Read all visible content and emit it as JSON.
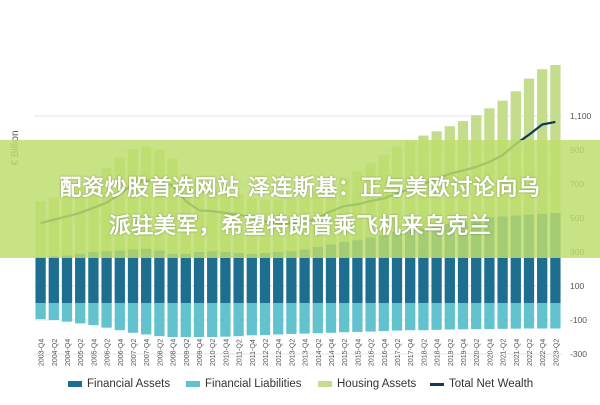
{
  "chart_data": {
    "type": "bar",
    "ylabel": "€ Billion",
    "ylim": [
      -300,
      1250
    ],
    "yticks": [
      1100,
      900,
      700,
      500,
      300,
      100,
      -100,
      -300
    ],
    "ytick_labels": [
      "1,100",
      "900",
      "700",
      "500",
      "300",
      "100",
      "-100",
      "-300"
    ],
    "grid": true,
    "legend_position": "bottom",
    "categories": [
      "2003-Q4",
      "2004-Q2",
      "2004-Q4",
      "2005-Q2",
      "2005-Q4",
      "2006-Q2",
      "2006-Q4",
      "2007-Q2",
      "2007-Q4",
      "2008-Q2",
      "2008-Q4",
      "2009-Q2",
      "2009-Q4",
      "2010-Q2",
      "2010-Q4",
      "2011-Q2",
      "2011-Q4",
      "2012-Q2",
      "2012-Q4",
      "2013-Q2",
      "2013-Q4",
      "2014-Q2",
      "2014-Q4",
      "2015-Q2",
      "2015-Q4",
      "2016-Q2",
      "2016-Q4",
      "2017-Q2",
      "2017-Q4",
      "2018-Q2",
      "2018-Q4",
      "2019-Q2",
      "2019-Q4",
      "2020-Q2",
      "2020-Q4",
      "2021-Q2",
      "2021-Q4",
      "2022-Q2",
      "2022-Q4",
      "2023-Q2"
    ],
    "series": [
      {
        "name": "Financial Assets",
        "color": "#1e6e8f",
        "kind": "bar",
        "values": [
          270,
          275,
          280,
          290,
          300,
          305,
          310,
          315,
          320,
          310,
          290,
          290,
          300,
          305,
          300,
          295,
          290,
          295,
          300,
          305,
          315,
          330,
          345,
          360,
          370,
          385,
          400,
          420,
          430,
          440,
          450,
          465,
          480,
          495,
          505,
          510,
          515,
          520,
          525,
          530
        ]
      },
      {
        "name": "Financial Liabilities",
        "color": "#62c3cf",
        "kind": "bar",
        "values": [
          -95,
          -100,
          -110,
          -120,
          -130,
          -145,
          -160,
          -175,
          -185,
          -195,
          -200,
          -200,
          -200,
          -200,
          -198,
          -195,
          -190,
          -188,
          -185,
          -182,
          -180,
          -178,
          -175,
          -172,
          -170,
          -168,
          -165,
          -162,
          -160,
          -160,
          -158,
          -156,
          -155,
          -154,
          -153,
          -152,
          -151,
          -150,
          -150,
          -150
        ]
      },
      {
        "name": "Housing Assets",
        "color": "#c4dd8c",
        "kind": "bar",
        "values": [
          330,
          345,
          365,
          390,
          430,
          490,
          550,
          590,
          600,
          590,
          560,
          470,
          420,
          380,
          360,
          345,
          325,
          315,
          310,
          310,
          315,
          330,
          350,
          380,
          405,
          440,
          470,
          500,
          525,
          545,
          560,
          575,
          590,
          610,
          640,
          680,
          730,
          800,
          850,
          870
        ]
      },
      {
        "name": "Total Net Wealth",
        "color": "#123a57",
        "kind": "line",
        "values": [
          470,
          490,
          510,
          530,
          560,
          590,
          640,
          700,
          720,
          720,
          690,
          600,
          545,
          540,
          530,
          520,
          500,
          480,
          470,
          468,
          473,
          500,
          540,
          570,
          580,
          600,
          615,
          645,
          670,
          700,
          730,
          760,
          780,
          800,
          830,
          870,
          935,
          990,
          1050,
          1065
        ]
      }
    ]
  },
  "overlay": {
    "line1": "配资炒股首选网站 泽连斯基：正与美欧讨论向乌",
    "line2": "派驻美军，希望特朗普乘飞机来乌克兰"
  }
}
